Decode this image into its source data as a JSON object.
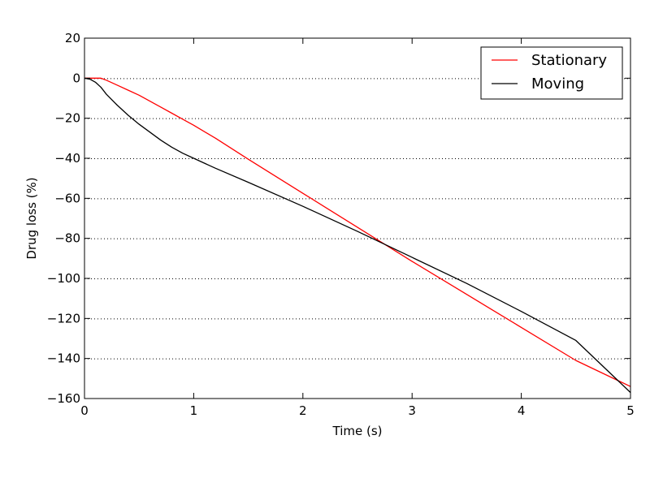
{
  "chart_data": {
    "type": "line",
    "title": "",
    "xlabel": "Time (s)",
    "ylabel": "Drug loss (%)",
    "xlim": [
      0,
      5
    ],
    "ylim": [
      -160,
      20
    ],
    "xticks": [
      0,
      1,
      2,
      3,
      4,
      5
    ],
    "yticks": [
      20,
      0,
      -20,
      -40,
      -60,
      -80,
      -100,
      -120,
      -140,
      -160
    ],
    "xtick_labels": [
      "0",
      "1",
      "2",
      "3",
      "4",
      "5"
    ],
    "ytick_labels": [
      "20",
      "0",
      "−20",
      "−40",
      "−60",
      "−80",
      "−100",
      "−120",
      "−140",
      "−160"
    ],
    "grid": "horizontal dotted",
    "legend_position": "top-right",
    "series": [
      {
        "name": "Stationary",
        "color": "#ff0000",
        "x": [
          0,
          0.1,
          0.15,
          0.2,
          0.3,
          0.4,
          0.5,
          0.6,
          0.7,
          0.8,
          0.9,
          1.0,
          1.2,
          1.5,
          2.0,
          2.5,
          3.0,
          3.5,
          4.0,
          4.5,
          5.0
        ],
        "y": [
          0,
          0,
          0,
          -1,
          -3.5,
          -6,
          -8.5,
          -11.5,
          -14.5,
          -17.5,
          -20.5,
          -23.5,
          -30,
          -40.5,
          -57.5,
          -74.5,
          -91.5,
          -108,
          -124.5,
          -141,
          -154
        ]
      },
      {
        "name": "Moving",
        "color": "#000000",
        "x": [
          0,
          0.05,
          0.1,
          0.15,
          0.2,
          0.3,
          0.4,
          0.5,
          0.6,
          0.7,
          0.8,
          0.9,
          1.0,
          1.2,
          1.5,
          2.0,
          2.5,
          3.0,
          3.5,
          4.0,
          4.5,
          5.0
        ],
        "y": [
          0,
          -0.5,
          -2,
          -4.5,
          -8,
          -13.5,
          -18.5,
          -23,
          -27,
          -31,
          -34.5,
          -37.5,
          -40,
          -45,
          -52,
          -64,
          -76.5,
          -89.5,
          -102.5,
          -116.5,
          -131,
          -157
        ]
      }
    ]
  }
}
